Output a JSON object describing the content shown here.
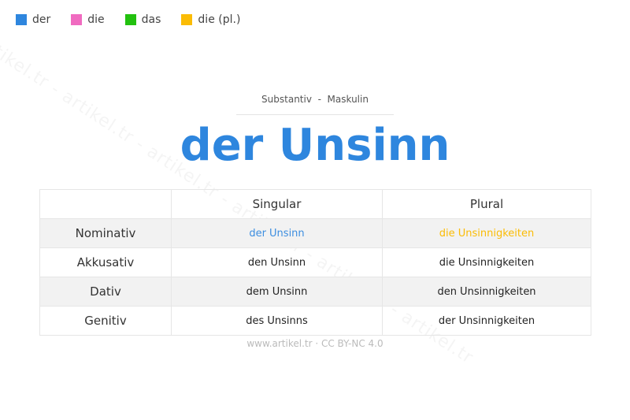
{
  "legend": [
    {
      "label": "der",
      "color": "#2e86de"
    },
    {
      "label": "die",
      "color": "#f06bc0"
    },
    {
      "label": "das",
      "color": "#22c10f"
    },
    {
      "label": "die (pl.)",
      "color": "#fbbc05"
    }
  ],
  "watermark": "artikel.tr - artikel.tr - artikel.tr - artikel.tr - artikel.tr - artikel.tr",
  "subtitle": "Substantiv  -  Maskulin",
  "title": "der Unsinn",
  "title_color": "#2e86de",
  "table": {
    "headers": [
      "",
      "Singular",
      "Plural"
    ],
    "rows": [
      {
        "case": "Nominativ",
        "singular": "der Unsinn",
        "plural": "die Unsinnigkeiten",
        "singular_color": "#3d8ee0",
        "plural_color": "#fbbc05"
      },
      {
        "case": "Akkusativ",
        "singular": "den Unsinn",
        "plural": "die Unsinnigkeiten"
      },
      {
        "case": "Dativ",
        "singular": "dem Unsinn",
        "plural": "den Unsinnigkeiten"
      },
      {
        "case": "Genitiv",
        "singular": "des Unsinns",
        "plural": "der Unsinnigkeiten"
      }
    ]
  },
  "footer": "www.artikel.tr · CC BY-NC 4.0"
}
